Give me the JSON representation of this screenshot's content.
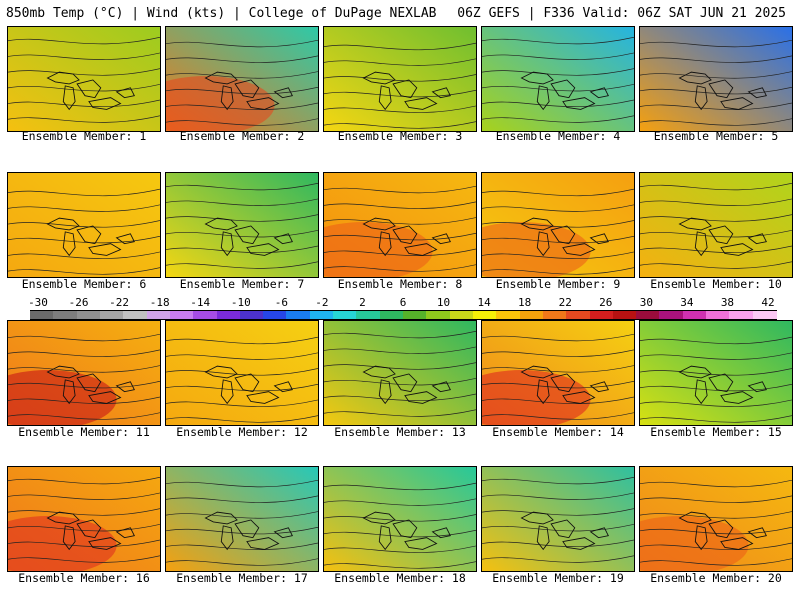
{
  "header": {
    "left": "850mb Temp (°C) | Wind (kts) | College of DuPage NEXLAB",
    "right": "06Z GEFS | F336 Valid: 06Z SAT JUN 21 2025"
  },
  "colorbar": {
    "labels": [
      "-30",
      "-26",
      "-22",
      "-18",
      "-14",
      "-10",
      "-6",
      "-2",
      "2",
      "6",
      "10",
      "14",
      "18",
      "22",
      "26",
      "30",
      "34",
      "38",
      "42"
    ],
    "colors": [
      "#6a6a6a",
      "#7d7d7d",
      "#909090",
      "#a4a4a4",
      "#c0c0c0",
      "#d0a3e8",
      "#c87cf0",
      "#a64ce6",
      "#7a2bd9",
      "#4c32cc",
      "#2646e8",
      "#1a7cf0",
      "#1fb4f0",
      "#27d6d6",
      "#27c89a",
      "#2fb860",
      "#56b22a",
      "#8fc81d",
      "#c9d81a",
      "#f5f008",
      "#f9c40a",
      "#f5a10c",
      "#f0781a",
      "#e44a20",
      "#d41e1e",
      "#b81212",
      "#9a0c3c",
      "#a8127c",
      "#d030b0",
      "#f070d8",
      "#f8a0ec",
      "#fbc8f4"
    ]
  },
  "members": [
    {
      "label": "Ensemble Member: 1",
      "base": "#f5c010",
      "top": "#9ccc20",
      "hot": null
    },
    {
      "label": "Ensemble Member: 2",
      "base": "#f0781a",
      "top": "#2ec9a8",
      "hot": "#e44a20"
    },
    {
      "label": "Ensemble Member: 3",
      "base": "#f5d612",
      "top": "#6fbf30",
      "hot": null
    },
    {
      "label": "Ensemble Member: 4",
      "base": "#a8d21c",
      "top": "#25b4e0",
      "hot": null
    },
    {
      "label": "Ensemble Member: 5",
      "base": "#f5a010",
      "top": "#2a70e8",
      "hot": null
    },
    {
      "label": "Ensemble Member: 6",
      "base": "#f5a810",
      "top": "#f5c810",
      "hot": null
    },
    {
      "label": "Ensemble Member: 7",
      "base": "#f5d612",
      "top": "#2fb860",
      "hot": null
    },
    {
      "label": "Ensemble Member: 8",
      "base": "#f5900f",
      "top": "#f5b810",
      "hot": "#ec6018"
    },
    {
      "label": "Ensemble Member: 9",
      "base": "#f5c810",
      "top": "#f5a010",
      "hot": "#ec6018"
    },
    {
      "label": "Ensemble Member: 10",
      "base": "#f5b010",
      "top": "#b0d41c",
      "hot": null
    },
    {
      "label": "Ensemble Member: 11",
      "base": "#f0781a",
      "top": "#f5b010",
      "hot": "#c81818"
    },
    {
      "label": "Ensemble Member: 12",
      "base": "#f5a810",
      "top": "#f5d012",
      "hot": null
    },
    {
      "label": "Ensemble Member: 13",
      "base": "#f5c810",
      "top": "#2fb860",
      "hot": null
    },
    {
      "label": "Ensemble Member: 14",
      "base": "#f0881a",
      "top": "#f5d012",
      "hot": "#e02a20"
    },
    {
      "label": "Ensemble Member: 15",
      "base": "#d8e012",
      "top": "#2fb860",
      "hot": null
    },
    {
      "label": "Ensemble Member: 16",
      "base": "#f0781a",
      "top": "#f5a810",
      "hot": "#e03020"
    },
    {
      "label": "Ensemble Member: 17",
      "base": "#f5a010",
      "top": "#27c8b8",
      "hot": null
    },
    {
      "label": "Ensemble Member: 18",
      "base": "#f5c010",
      "top": "#27c89a",
      "hot": null
    },
    {
      "label": "Ensemble Member: 19",
      "base": "#f5c010",
      "top": "#2fc0a0",
      "hot": null
    },
    {
      "label": "Ensemble Member: 20",
      "base": "#f0881a",
      "top": "#f5b810",
      "hot": "#ec6018"
    }
  ]
}
